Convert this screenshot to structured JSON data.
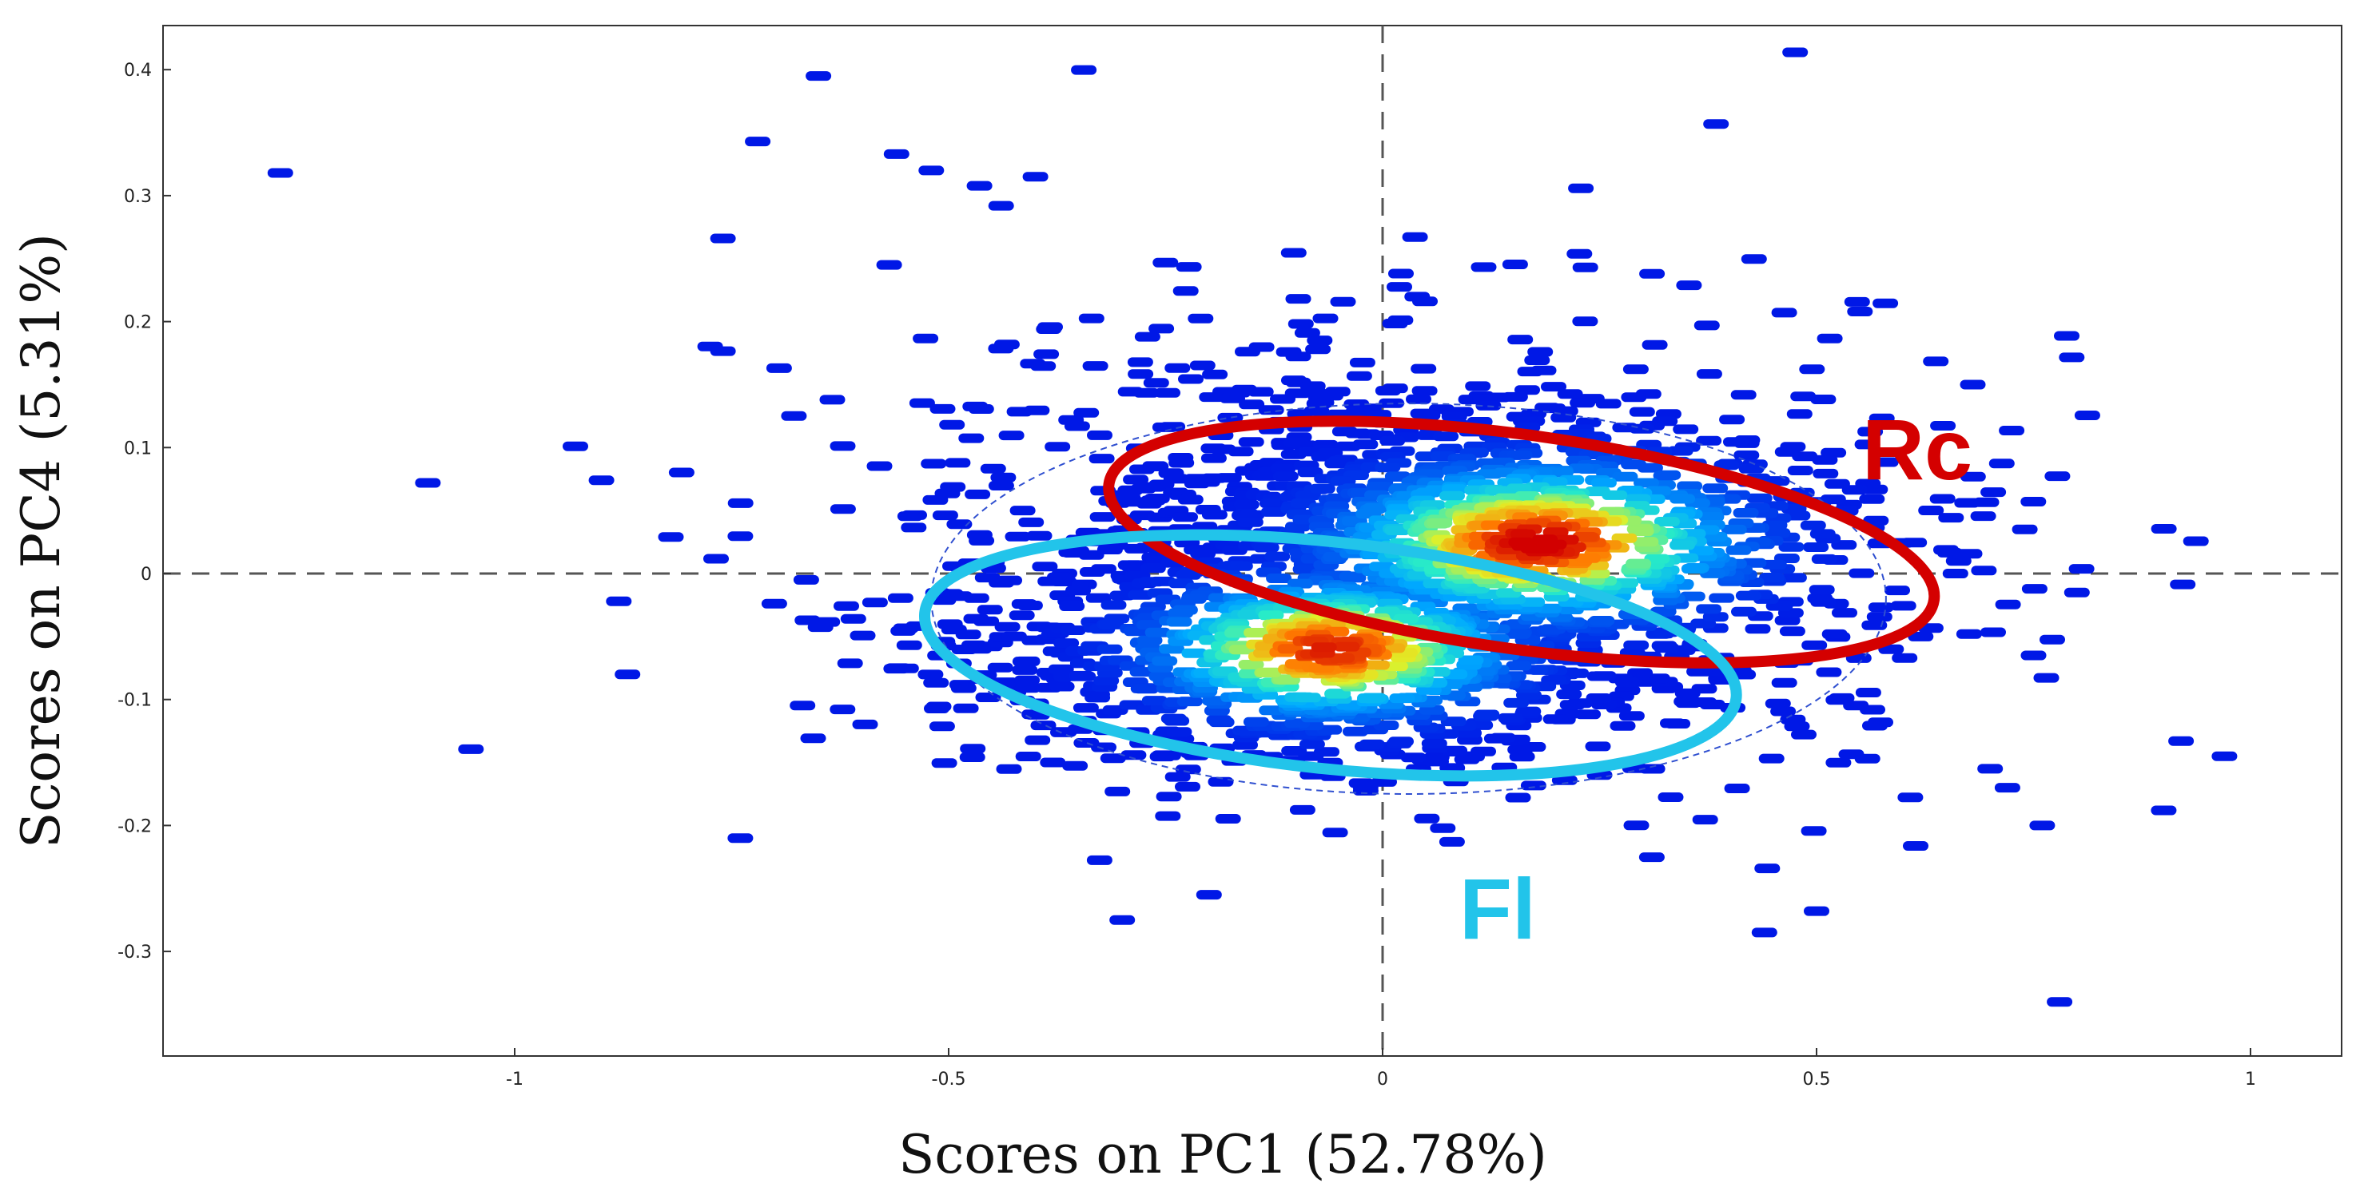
{
  "chart_data": {
    "type": "scatter",
    "title": "",
    "xlabel": "Scores on PC1 (52.78%)",
    "ylabel": "Scores on PC4 (5.31%)",
    "xlim": [
      -1.4,
      1.1
    ],
    "ylim": [
      -0.38,
      0.42
    ],
    "xticks": [
      -1,
      -0.5,
      0,
      0.5,
      1
    ],
    "xtick_labels": [
      "-1",
      "-0.5",
      "0",
      "0.5",
      "1"
    ],
    "yticks": [
      0.4,
      0.3,
      0.2,
      0.1,
      0,
      -0.1,
      -0.2,
      -0.3
    ],
    "ytick_labels": [
      "0.4",
      "0.3",
      "0.2",
      "0.1",
      "0",
      "-0.1",
      "-0.2",
      "-0.3"
    ],
    "grid": false,
    "reference_lines": {
      "x": 0,
      "y": 0
    },
    "colormap": "density (blue-cyan-yellow-red)",
    "clusters": [
      {
        "label": "Rc",
        "color": "#d40000",
        "center": [
          0.16,
          0.025
        ],
        "semi_axes": [
          0.48,
          0.085
        ],
        "density_peak": [
          0.18,
          0.025
        ]
      },
      {
        "label": "Fl",
        "color": "#22c4ea",
        "center": [
          -0.06,
          -0.065
        ],
        "semi_axes": [
          0.47,
          0.09
        ],
        "density_peak": [
          -0.06,
          -0.06
        ]
      }
    ],
    "confidence_ellipse": {
      "center": [
        0.03,
        -0.02
      ],
      "semi_axes": [
        0.55,
        0.155
      ],
      "style": "dashed"
    },
    "outlier_points": [
      [
        -1.27,
        0.318
      ],
      [
        -1.1,
        0.072
      ],
      [
        -0.93,
        0.101
      ],
      [
        -0.9,
        0.074
      ],
      [
        -0.88,
        -0.022
      ],
      [
        -0.87,
        -0.08
      ],
      [
        -0.82,
        0.029
      ],
      [
        -0.76,
        0.266
      ],
      [
        -0.74,
        -0.21
      ],
      [
        -0.72,
        0.343
      ],
      [
        -0.65,
        0.395
      ],
      [
        -0.56,
        0.333
      ],
      [
        -0.52,
        0.32
      ],
      [
        -0.4,
        0.315
      ],
      [
        -0.38,
        -0.15
      ],
      [
        -0.3,
        -0.275
      ],
      [
        -0.2,
        -0.255
      ],
      [
        0.08,
        -0.213
      ],
      [
        0.25,
        -0.16
      ],
      [
        0.44,
        -0.285
      ],
      [
        0.5,
        -0.268
      ],
      [
        0.55,
        0.208
      ],
      [
        0.68,
        0.15
      ],
      [
        0.7,
        -0.155
      ],
      [
        0.72,
        -0.17
      ],
      [
        0.76,
        -0.2
      ],
      [
        0.78,
        -0.34
      ],
      [
        0.9,
        -0.188
      ],
      [
        0.92,
        -0.133
      ],
      [
        0.97,
        -0.145
      ],
      [
        0.8,
        -0.015
      ],
      [
        0.75,
        -0.065
      ],
      [
        0.62,
        -0.05
      ],
      [
        0.66,
        0.0
      ],
      [
        0.74,
        0.035
      ]
    ]
  }
}
